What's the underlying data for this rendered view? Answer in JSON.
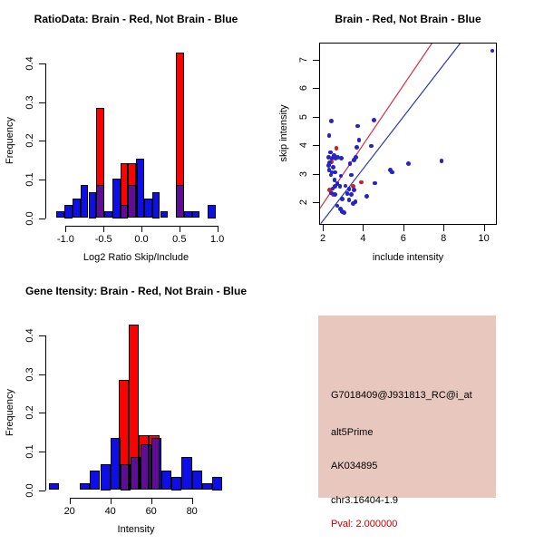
{
  "colors": {
    "red": "#FF0000",
    "blue": "#0E0EEB",
    "overlap_purple": "#5F0D96",
    "point_red": "#D32020",
    "point_blue": "#2424C8",
    "line_red": "#D22F42",
    "line_blue": "#2A35B5",
    "axis": "#000000",
    "background": "#FFFFFF"
  },
  "chart_data": [
    {
      "type": "bar",
      "id": "ratio_histogram",
      "title": "RatioData: Brain - Red, Not Brain - Blue",
      "xlabel": "Log2 Ratio Skip/Include",
      "ylabel": "Frequency",
      "bin_width": 0.105,
      "xlim": [
        -1.2,
        1.1
      ],
      "ylim": [
        0,
        0.43
      ],
      "grid": false,
      "x_ticks": {
        "values": [
          -1.0,
          -0.5,
          0.0,
          0.5,
          1.0
        ],
        "labels": [
          "-1.0",
          "-0.5",
          "0.0",
          "0.5",
          "1.0"
        ]
      },
      "y_ticks": {
        "values": [
          0.0,
          0.1,
          0.2,
          0.3,
          0.4
        ],
        "labels": [
          "0.0",
          "0.1",
          "0.2",
          "0.3",
          "0.4"
        ]
      },
      "series": [
        {
          "name": "Brain",
          "color_key": "red",
          "bars": [
            [
              -0.595,
              0.286
            ],
            [
              -0.28,
              0.143
            ],
            [
              -0.175,
              0.143
            ],
            [
              0.455,
              0.429
            ]
          ]
        },
        {
          "name": "Not Brain",
          "color_key": "blue",
          "bars": [
            [
              -1.12,
              0.017
            ],
            [
              -1.015,
              0.034
            ],
            [
              -0.91,
              0.051
            ],
            [
              -0.805,
              0.085
            ],
            [
              -0.7,
              0.068
            ],
            [
              -0.595,
              0.085
            ],
            [
              -0.49,
              0.017
            ],
            [
              -0.385,
              0.102
            ],
            [
              -0.28,
              0.034
            ],
            [
              -0.175,
              0.085
            ],
            [
              -0.07,
              0.153
            ],
            [
              0.035,
              0.051
            ],
            [
              0.14,
              0.068
            ],
            [
              0.245,
              0.017
            ],
            [
              0.455,
              0.085
            ],
            [
              0.56,
              0.017
            ],
            [
              0.665,
              0.017
            ],
            [
              0.875,
              0.034
            ]
          ]
        }
      ],
      "overlap_color_key": "overlap_purple"
    },
    {
      "type": "scatter",
      "id": "intensity_scatter",
      "title": "Brain - Red, Not Brain - Blue",
      "xlabel": "include intensity",
      "ylabel": "skip intensity",
      "xlim": [
        1.8,
        10.65
      ],
      "ylim": [
        1.2,
        7.9
      ],
      "grid": false,
      "x_ticks": {
        "values": [
          2,
          4,
          6,
          8,
          10
        ],
        "labels": [
          "2",
          "4",
          "6",
          "8",
          "10"
        ]
      },
      "y_ticks": {
        "values": [
          2,
          3,
          4,
          5,
          6,
          7
        ],
        "labels": [
          "2",
          "3",
          "4",
          "5",
          "6",
          "7"
        ]
      },
      "series": [
        {
          "name": "Brain",
          "color_key": "red",
          "points": [
            [
              2.68,
              3.88
            ],
            [
              2.52,
              3.57
            ],
            [
              2.42,
              3.42
            ],
            [
              2.35,
              2.42
            ],
            [
              2.52,
              2.27
            ],
            [
              3.52,
              2.55
            ],
            [
              3.9,
              2.7
            ]
          ]
        },
        {
          "name": "Not Brain",
          "color_key": "blue",
          "points": [
            [
              10.42,
              7.3
            ],
            [
              7.9,
              3.45
            ],
            [
              6.25,
              3.35
            ],
            [
              5.35,
              3.12
            ],
            [
              5.45,
              3.05
            ],
            [
              4.55,
              4.88
            ],
            [
              4.42,
              3.97
            ],
            [
              4.6,
              2.67
            ],
            [
              4.2,
              2.2
            ],
            [
              3.72,
              4.67
            ],
            [
              3.8,
              4.17
            ],
            [
              3.7,
              3.93
            ],
            [
              3.63,
              3.57
            ],
            [
              3.55,
              3.47
            ],
            [
              2.42,
              4.85
            ],
            [
              2.32,
              4.33
            ],
            [
              2.38,
              3.75
            ],
            [
              2.28,
              3.57
            ],
            [
              2.45,
              3.52
            ],
            [
              2.55,
              3.63
            ],
            [
              2.63,
              3.52
            ],
            [
              2.75,
              3.57
            ],
            [
              2.92,
              3.55
            ],
            [
              3.35,
              3.35
            ],
            [
              3.42,
              2.95
            ],
            [
              2.35,
              3.38
            ],
            [
              2.3,
              3.28
            ],
            [
              2.52,
              3.22
            ],
            [
              2.32,
              3.12
            ],
            [
              2.45,
              3.05
            ],
            [
              2.6,
              3.05
            ],
            [
              2.4,
              2.95
            ],
            [
              2.9,
              2.92
            ],
            [
              2.58,
              2.78
            ],
            [
              2.72,
              2.65
            ],
            [
              2.62,
              2.55
            ],
            [
              2.5,
              2.48
            ],
            [
              2.85,
              2.55
            ],
            [
              3.12,
              2.57
            ],
            [
              3.3,
              2.47
            ],
            [
              3.55,
              2.42
            ],
            [
              2.42,
              2.32
            ],
            [
              2.62,
              2.28
            ],
            [
              3.22,
              2.3
            ],
            [
              3.42,
              2.27
            ],
            [
              2.97,
              2.12
            ],
            [
              3.3,
              2.07
            ],
            [
              3.62,
              2.02
            ],
            [
              3.5,
              1.95
            ],
            [
              2.72,
              1.87
            ],
            [
              2.87,
              1.77
            ],
            [
              2.97,
              1.67
            ],
            [
              3.07,
              1.63
            ]
          ]
        }
      ],
      "fit_lines": [
        {
          "color_key": "red",
          "x1": 1.78,
          "y1": 1.7,
          "x2": 7.75,
          "y2": 7.9
        },
        {
          "color_key": "blue",
          "x1": 1.9,
          "y1": 1.25,
          "x2": 9.2,
          "y2": 7.9
        }
      ]
    },
    {
      "type": "bar",
      "id": "gene_intensity_histogram",
      "title": "Gene Itensity: Brain - Red, Not Brain - Blue",
      "xlabel": "Intensity",
      "ylabel": "Frequency",
      "bin_width": 5,
      "xlim": [
        8,
        97
      ],
      "ylim": [
        0,
        0.43
      ],
      "grid": false,
      "x_ticks": {
        "values": [
          20,
          40,
          60,
          80
        ],
        "labels": [
          "20",
          "40",
          "60",
          "80"
        ]
      },
      "y_ticks": {
        "values": [
          0.0,
          0.1,
          0.2,
          0.3,
          0.4
        ],
        "labels": [
          "0.0",
          "0.1",
          "0.2",
          "0.3",
          "0.4"
        ]
      },
      "series": [
        {
          "name": "Brain",
          "color_key": "red",
          "bars": [
            [
              44,
              0.286
            ],
            [
              49,
              0.429
            ],
            [
              54,
              0.143
            ],
            [
              59,
              0.143
            ]
          ]
        },
        {
          "name": "Not Brain",
          "color_key": "blue",
          "bars": [
            [
              10,
              0.017
            ],
            [
              25,
              0.017
            ],
            [
              30,
              0.051
            ],
            [
              35,
              0.068
            ],
            [
              40,
              0.136
            ],
            [
              45,
              0.068
            ],
            [
              50,
              0.085
            ],
            [
              55,
              0.119
            ],
            [
              60,
              0.136
            ],
            [
              65,
              0.051
            ],
            [
              70,
              0.034
            ],
            [
              75,
              0.085
            ],
            [
              80,
              0.051
            ],
            [
              85,
              0.017
            ],
            [
              90,
              0.034
            ]
          ]
        }
      ],
      "overlap_color_key": "overlap_purple"
    }
  ],
  "info_box": {
    "bg_color": "#E8C7BF",
    "probe_id": "G7018409@J931813_RC@i_at",
    "splice_type": "alt5Prime",
    "accession": "AK034895",
    "locus": "chr3.16404-1.9",
    "pval": "Pval: 2.000000",
    "pval_color": "#C00000"
  }
}
